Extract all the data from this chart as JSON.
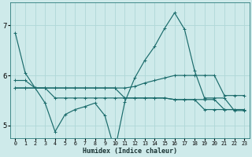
{
  "title": "",
  "xlabel": "Humidex (Indice chaleur)",
  "ylabel": "",
  "bg_color": "#ceeaea",
  "line_color": "#1a6b6b",
  "grid_color": "#b0d8d8",
  "xlim": [
    -0.5,
    23.5
  ],
  "ylim": [
    4.75,
    7.45
  ],
  "yticks": [
    5,
    6,
    7
  ],
  "xticks": [
    0,
    1,
    2,
    3,
    4,
    5,
    6,
    7,
    8,
    9,
    10,
    11,
    12,
    13,
    14,
    15,
    16,
    17,
    18,
    19,
    20,
    21,
    22,
    23
  ],
  "series": [
    {
      "x": [
        0,
        1,
        2,
        3,
        4,
        5,
        6,
        7,
        8,
        9,
        10,
        11,
        12,
        13,
        14,
        15,
        16,
        17,
        18,
        19,
        20,
        21,
        22,
        23
      ],
      "y": [
        6.85,
        6.05,
        5.75,
        5.45,
        4.88,
        5.22,
        5.32,
        5.38,
        5.45,
        5.2,
        4.5,
        5.47,
        5.95,
        6.3,
        6.58,
        6.94,
        7.25,
        6.92,
        6.1,
        5.55,
        5.55,
        5.55,
        5.3,
        5.3
      ]
    },
    {
      "x": [
        0,
        1,
        2,
        3,
        4,
        5,
        6,
        7,
        8,
        9,
        10,
        11,
        12,
        13,
        14,
        15,
        16,
        17,
        18,
        19,
        20,
        21,
        22,
        23
      ],
      "y": [
        5.9,
        5.9,
        5.75,
        5.75,
        5.75,
        5.75,
        5.75,
        5.75,
        5.75,
        5.75,
        5.75,
        5.75,
        5.78,
        5.85,
        5.9,
        5.95,
        6.0,
        6.0,
        6.0,
        6.0,
        6.0,
        5.6,
        5.6,
        5.6
      ]
    },
    {
      "x": [
        0,
        1,
        2,
        3,
        4,
        5,
        6,
        7,
        8,
        9,
        10,
        11,
        12,
        13,
        14,
        15,
        16,
        17,
        18,
        19,
        20,
        21,
        22,
        23
      ],
      "y": [
        5.75,
        5.75,
        5.75,
        5.75,
        5.75,
        5.75,
        5.75,
        5.75,
        5.75,
        5.75,
        5.75,
        5.55,
        5.55,
        5.55,
        5.55,
        5.55,
        5.52,
        5.52,
        5.52,
        5.52,
        5.52,
        5.32,
        5.32,
        5.32
      ]
    },
    {
      "x": [
        0,
        1,
        2,
        3,
        4,
        5,
        6,
        7,
        8,
        9,
        10,
        11,
        12,
        13,
        14,
        15,
        16,
        17,
        18,
        19,
        20,
        21,
        22,
        23
      ],
      "y": [
        5.75,
        5.75,
        5.75,
        5.75,
        5.55,
        5.55,
        5.55,
        5.55,
        5.55,
        5.55,
        5.55,
        5.55,
        5.55,
        5.55,
        5.55,
        5.55,
        5.52,
        5.52,
        5.52,
        5.32,
        5.32,
        5.32,
        5.32,
        5.32
      ]
    }
  ]
}
